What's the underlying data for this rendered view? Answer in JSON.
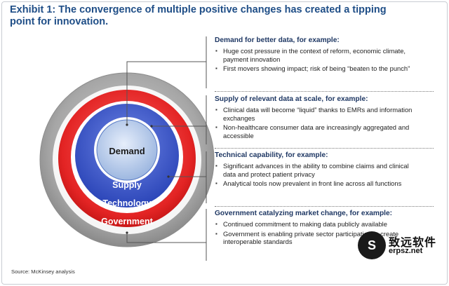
{
  "title": "Exhibit 1: The convergence of multiple positive changes has created a tipping point for innovation.",
  "rings": {
    "center": "Demand",
    "ring1": "Supply",
    "ring2": "Technology",
    "ring3": "Government"
  },
  "colors": {
    "title": "#1f4e87",
    "demand_fill": "#aec4e6",
    "supply_fill": "#3b58c9",
    "technology_fill": "#e32424",
    "government_fill": "#9c9c9c"
  },
  "panels": [
    {
      "heading": "Demand for better data, for example:",
      "bullets": [
        "Huge cost pressure in the context of reform, economic climate, payment innovation",
        "First movers showing impact; risk of being “beaten to the punch”"
      ]
    },
    {
      "heading": "Supply of relevant data at scale, for example:",
      "bullets": [
        "Clinical data will become “liquid” thanks to EMRs and information exchanges",
        "Non-healthcare consumer data are increasingly aggregated and accessible"
      ]
    },
    {
      "heading": "Technical capability, for example:",
      "bullets": [
        "Significant advances in the ability to combine claims and clinical data and protect patient privacy",
        "Analytical tools now prevalent in front line across all functions"
      ]
    },
    {
      "heading": "Government catalyzing market change, for example:",
      "bullets": [
        "Continued commitment to making data publicly available",
        "Government is enabling private sector participation to create interoperable standards"
      ]
    }
  ],
  "source": "Source: McKinsey analysis",
  "watermark": {
    "logo": "S",
    "text": "致远软件",
    "url": "erpsz.net"
  }
}
